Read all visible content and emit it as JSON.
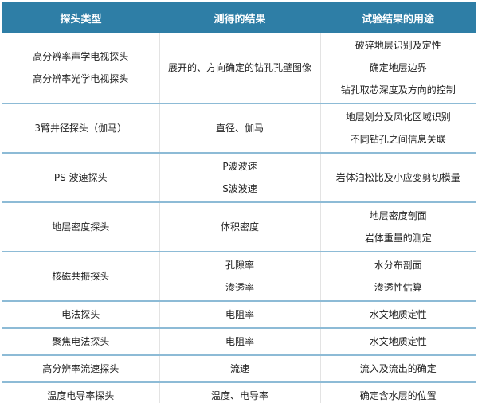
{
  "header": [
    "探头类型",
    "测得的结果",
    "试验结果的用途"
  ],
  "rows": [
    {
      "probe": [
        "高分辨率声学电视探头",
        "高分辨率光学电视探头"
      ],
      "result": [
        "展开的、方向确定的钻孔孔壁图像"
      ],
      "use": [
        "破碎地层识别及定性",
        "确定地层边界",
        "钻孔取芯深度及方向的控制"
      ]
    },
    {
      "probe": [
        "3臂井径探头（伽马）"
      ],
      "result": [
        "直径、伽马"
      ],
      "use": [
        "地层划分及风化区域识别",
        "不同钻孔之间信息关联"
      ]
    },
    {
      "probe": [
        "PS 波速探头"
      ],
      "result": [
        "P波波速",
        "S波波速"
      ],
      "use": [
        "岩体泊松比及小应变剪切模量"
      ]
    },
    {
      "probe": [
        "地层密度探头"
      ],
      "result": [
        "体积密度"
      ],
      "use": [
        "地层密度剖面",
        "岩体重量的测定"
      ]
    },
    {
      "probe": [
        "核磁共振探头"
      ],
      "result": [
        "孔隙率",
        "渗透率"
      ],
      "use": [
        "水分布剖面",
        "渗透性估算"
      ]
    },
    {
      "probe": [
        "电法探头"
      ],
      "result": [
        "电阻率"
      ],
      "use": [
        "水文地质定性"
      ]
    },
    {
      "probe": [
        "聚焦电法探头"
      ],
      "result": [
        "电阻率"
      ],
      "use": [
        "水文地质定性"
      ]
    },
    {
      "probe": [
        "高分辨率流速探头"
      ],
      "result": [
        "流速"
      ],
      "use": [
        "流入及流出的确定"
      ]
    },
    {
      "probe": [
        "温度电导率探头"
      ],
      "result": [
        "温度、电导率"
      ],
      "use": [
        "确定含水层的位置"
      ]
    }
  ],
  "colors": {
    "header_bg": "#2e7ea6",
    "row_divider": "#8dbbd6"
  }
}
